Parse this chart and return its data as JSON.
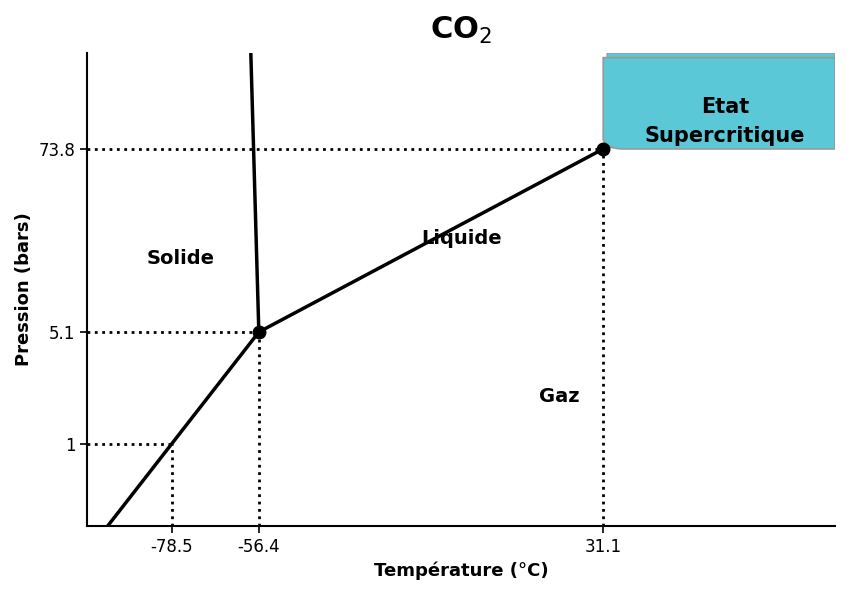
{
  "title": "CO$_2$",
  "xlabel": "Température (°C)",
  "ylabel": "Pression (bars)",
  "background_color": "#ffffff",
  "supercritical_color": "#5BC8D8",
  "triple_point": [
    -56.4,
    5.1
  ],
  "critical_point": [
    31.1,
    73.8
  ],
  "sublimation_point_temp": -78.5,
  "xlim": [
    -100,
    90
  ],
  "title_fontsize": 22,
  "label_fontsize": 13,
  "region_fontsize": 14,
  "tick_fontsize": 12
}
